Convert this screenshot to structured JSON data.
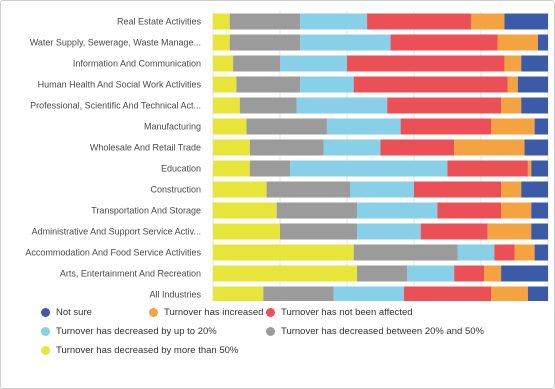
{
  "chart_data": {
    "type": "bar",
    "orientation": "horizontal",
    "stacked": true,
    "categories": [
      "Real Estate Activities",
      "Water Supply, Sewerage, Waste Manage...",
      "Information And Communication",
      "Human Health And Social Work Activities",
      "Professional, Scientific And Technical Act...",
      "Manufacturing",
      "Wholesale And Retail Trade",
      "Education",
      "Construction",
      "Transportation And Storage",
      "Administrative And Support Service Activ...",
      "Accommodation And Food Service Activities",
      "Arts, Entertainment And Recreation",
      "All Industries"
    ],
    "series": [
      {
        "name": "Turnover has decreased by more than 50%",
        "color": "#e8e53a",
        "values": [
          5,
          5,
          6,
          7,
          8,
          10,
          11,
          11,
          16,
          19,
          20,
          42,
          43,
          15
        ]
      },
      {
        "name": "Turnover has decreased between 20% and 50%",
        "color": "#9b9b9b",
        "values": [
          21,
          21,
          14,
          19,
          17,
          24,
          22,
          12,
          25,
          24,
          23,
          31,
          15,
          21
        ]
      },
      {
        "name": "Turnover has decreased by up to 20%",
        "color": "#88cfe8",
        "values": [
          20,
          27,
          20,
          16,
          27,
          22,
          17,
          47,
          19,
          24,
          19,
          11,
          14,
          21
        ]
      },
      {
        "name": "Turnover has not been affected",
        "color": "#ea5055",
        "values": [
          31,
          32,
          47,
          46,
          34,
          27,
          22,
          24,
          26,
          19,
          20,
          6,
          9,
          26
        ]
      },
      {
        "name": "Turnover has increased",
        "color": "#f4a340",
        "values": [
          10,
          12,
          5,
          3,
          6,
          13,
          21,
          1,
          6,
          9,
          13,
          6,
          5,
          11
        ]
      },
      {
        "name": "Not sure",
        "color": "#3b5ba9",
        "values": [
          13,
          3,
          8,
          9,
          8,
          4,
          7,
          5,
          8,
          5,
          5,
          4,
          14,
          6
        ]
      }
    ],
    "xlim": [
      0,
      100
    ],
    "xticks": [
      0,
      20,
      40,
      60,
      80,
      100
    ],
    "xunit": "%",
    "grid": true,
    "legend_position": "bottom",
    "legend_order": [
      5,
      4,
      3,
      2,
      1,
      0
    ]
  }
}
